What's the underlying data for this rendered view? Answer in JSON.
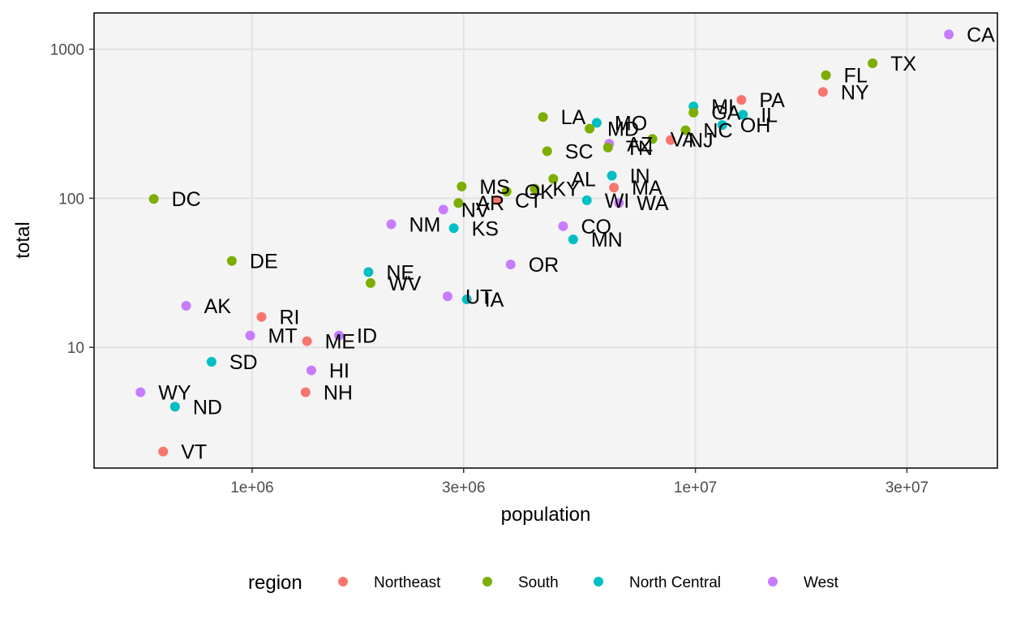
{
  "chart_data": {
    "type": "scatter",
    "xlabel": "population",
    "ylabel": "total",
    "x_scale": "log10",
    "y_scale": "log10",
    "xlim": [
      440000,
      48000000
    ],
    "ylim": [
      1.55,
      1750
    ],
    "x_ticks": [
      {
        "value": 1000000,
        "label": "1e+06"
      },
      {
        "value": 3000000,
        "label": "3e+06"
      },
      {
        "value": 10000000,
        "label": "1e+07"
      },
      {
        "value": 30000000,
        "label": "3e+07"
      }
    ],
    "y_ticks": [
      {
        "value": 10,
        "label": "10"
      },
      {
        "value": 100,
        "label": "100"
      },
      {
        "value": 1000,
        "label": "1000"
      }
    ],
    "grid": true,
    "legend": {
      "title": "region",
      "position": "bottom",
      "entries": [
        {
          "name": "Northeast",
          "color": "#F8766D"
        },
        {
          "name": "South",
          "color": "#7CAE00"
        },
        {
          "name": "North Central",
          "color": "#00BFC4"
        },
        {
          "name": "West",
          "color": "#C77CFF"
        }
      ]
    },
    "points": [
      {
        "label": "CA",
        "region": "West",
        "x": 37300000,
        "y": 1257
      },
      {
        "label": "TX",
        "region": "South",
        "x": 25100000,
        "y": 805
      },
      {
        "label": "FL",
        "region": "South",
        "x": 19700000,
        "y": 669
      },
      {
        "label": "NY",
        "region": "Northeast",
        "x": 19400000,
        "y": 517
      },
      {
        "label": "PA",
        "region": "Northeast",
        "x": 12700000,
        "y": 457
      },
      {
        "label": "MI",
        "region": "North Central",
        "x": 9900000,
        "y": 413
      },
      {
        "label": "GA",
        "region": "South",
        "x": 9900000,
        "y": 376
      },
      {
        "label": "IL",
        "region": "North Central",
        "x": 12800000,
        "y": 364
      },
      {
        "label": "OH",
        "region": "North Central",
        "x": 11500000,
        "y": 310
      },
      {
        "label": "NC",
        "region": "South",
        "x": 9500000,
        "y": 286
      },
      {
        "label": "LA",
        "region": "South",
        "x": 4530000,
        "y": 351
      },
      {
        "label": "MO",
        "region": "North Central",
        "x": 5990000,
        "y": 321
      },
      {
        "label": "MD",
        "region": "South",
        "x": 5770000,
        "y": 293
      },
      {
        "label": "AZ",
        "region": "West",
        "x": 6390000,
        "y": 232
      },
      {
        "label": "TN",
        "region": "South",
        "x": 6350000,
        "y": 219
      },
      {
        "label": "VA",
        "region": "South",
        "x": 8000000,
        "y": 250
      },
      {
        "label": "NJ",
        "region": "Northeast",
        "x": 8790000,
        "y": 246
      },
      {
        "label": "SC",
        "region": "South",
        "x": 4630000,
        "y": 207
      },
      {
        "label": "IN",
        "region": "North Central",
        "x": 6480000,
        "y": 142
      },
      {
        "label": "AL",
        "region": "South",
        "x": 4780000,
        "y": 135
      },
      {
        "label": "MA",
        "region": "Northeast",
        "x": 6550000,
        "y": 118
      },
      {
        "label": "KY",
        "region": "South",
        "x": 4340000,
        "y": 116
      },
      {
        "label": "OK",
        "region": "South",
        "x": 3750000,
        "y": 111
      },
      {
        "label": "MS",
        "region": "South",
        "x": 2970000,
        "y": 120
      },
      {
        "label": "CT",
        "region": "Northeast",
        "x": 3570000,
        "y": 97
      },
      {
        "label": "AR",
        "region": "South",
        "x": 2920000,
        "y": 93
      },
      {
        "label": "WI",
        "region": "North Central",
        "x": 5690000,
        "y": 97
      },
      {
        "label": "WA",
        "region": "West",
        "x": 6720000,
        "y": 93
      },
      {
        "label": "NV",
        "region": "West",
        "x": 2700000,
        "y": 84
      },
      {
        "label": "NM",
        "region": "West",
        "x": 2060000,
        "y": 67
      },
      {
        "label": "KS",
        "region": "North Central",
        "x": 2850000,
        "y": 63
      },
      {
        "label": "CO",
        "region": "West",
        "x": 5030000,
        "y": 65
      },
      {
        "label": "MN",
        "region": "North Central",
        "x": 5300000,
        "y": 53
      },
      {
        "label": "DC",
        "region": "South",
        "x": 600000,
        "y": 99
      },
      {
        "label": "DE",
        "region": "South",
        "x": 900000,
        "y": 38
      },
      {
        "label": "OR",
        "region": "West",
        "x": 3830000,
        "y": 36
      },
      {
        "label": "NE",
        "region": "North Central",
        "x": 1830000,
        "y": 32
      },
      {
        "label": "WV",
        "region": "South",
        "x": 1850000,
        "y": 27
      },
      {
        "label": "UT",
        "region": "West",
        "x": 2760000,
        "y": 22
      },
      {
        "label": "IA",
        "region": "North Central",
        "x": 3050000,
        "y": 21
      },
      {
        "label": "AK",
        "region": "West",
        "x": 710000,
        "y": 19
      },
      {
        "label": "RI",
        "region": "Northeast",
        "x": 1050000,
        "y": 16
      },
      {
        "label": "MT",
        "region": "West",
        "x": 990000,
        "y": 12
      },
      {
        "label": "ME",
        "region": "Northeast",
        "x": 1330000,
        "y": 11
      },
      {
        "label": "ID",
        "region": "West",
        "x": 1570000,
        "y": 12
      },
      {
        "label": "SD",
        "region": "North Central",
        "x": 810000,
        "y": 8
      },
      {
        "label": "HI",
        "region": "West",
        "x": 1360000,
        "y": 7
      },
      {
        "label": "NH",
        "region": "Northeast",
        "x": 1320000,
        "y": 5
      },
      {
        "label": "WY",
        "region": "West",
        "x": 560000,
        "y": 5
      },
      {
        "label": "ND",
        "region": "North Central",
        "x": 670000,
        "y": 4
      },
      {
        "label": "VT",
        "region": "Northeast",
        "x": 630000,
        "y": 2
      }
    ]
  }
}
